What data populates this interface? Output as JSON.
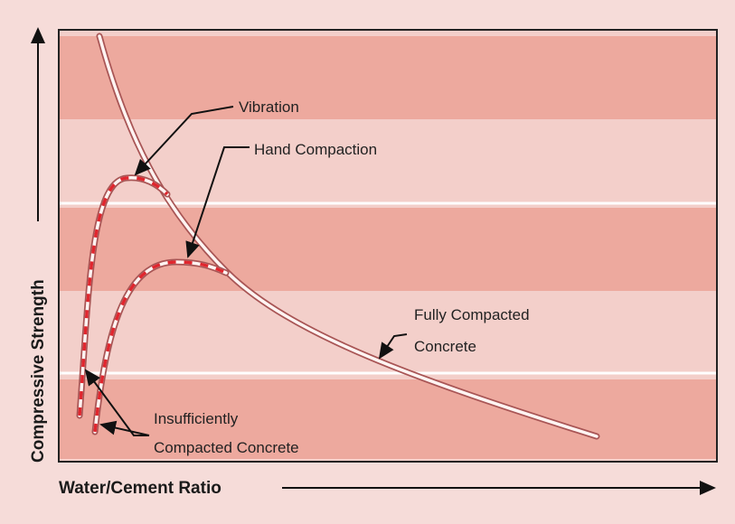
{
  "axes": {
    "x_label": "Water/Cement Ratio",
    "y_label": "Compressive Strength"
  },
  "labels": {
    "vibration": "Vibration",
    "hand_compaction": "Hand Compaction",
    "fully_compacted": [
      "Fully Compacted",
      "Concrete"
    ],
    "insufficiently_compacted": [
      "Insufficiently",
      "Compacted Concrete"
    ]
  }
}
